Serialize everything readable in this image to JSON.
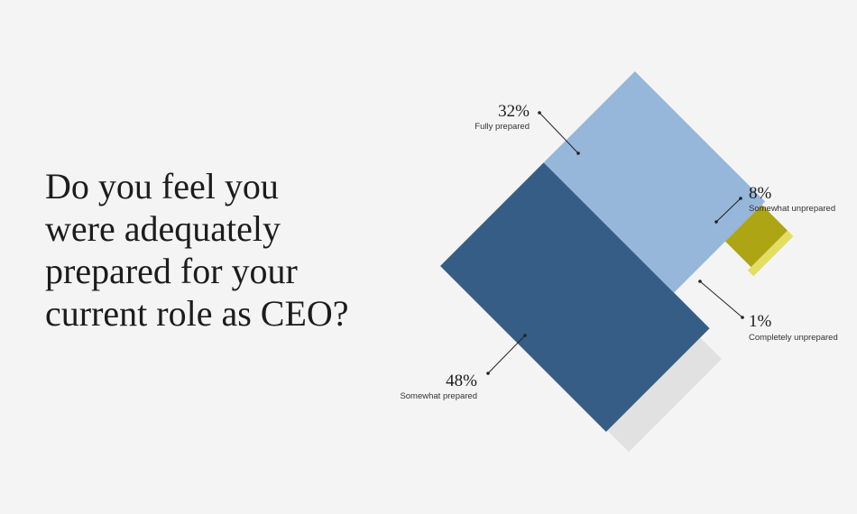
{
  "question_lines": [
    "Do you feel you",
    "were adequately",
    "prepared for your",
    "current role as CEO?"
  ],
  "chart_data": {
    "type": "area",
    "title": "",
    "total_max": 100,
    "segments": [
      {
        "label": "Somewhat prepared",
        "value": 48,
        "display": "48%",
        "color": "#365d85"
      },
      {
        "label": "Fully prepared",
        "value": 32,
        "display": "32%",
        "color": "#96b6da"
      },
      {
        "label": "Somewhat unprepared",
        "value": 8,
        "display": "8%",
        "color": "#ada514"
      },
      {
        "label": "Completely unprepared",
        "value": 1,
        "display": "1%",
        "color": "#e3dd62"
      }
    ],
    "remainder_color": "#e1e1e1",
    "leader_color": "#222222"
  }
}
